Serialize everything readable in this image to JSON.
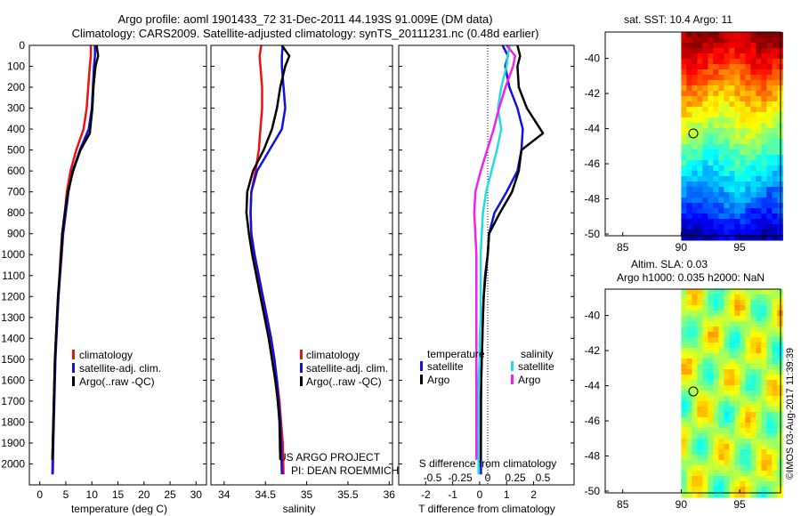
{
  "title": {
    "line1": "Argo profile: aoml 1901433_72 31-Dec-2011 44.193S 91.009E (DM data)",
    "line2": "Climatology: CARS2009. Satellite-adjusted climatology: synTS_20111231.nc (0.48d earlier)"
  },
  "depth_ticks": [
    "0",
    "100",
    "200",
    "300",
    "400",
    "500",
    "600",
    "700",
    "800",
    "900",
    "1000",
    "1100",
    "1200",
    "1300",
    "1400",
    "1500",
    "1600",
    "1700",
    "1800",
    "1900",
    "2000"
  ],
  "panels": {
    "temperature": {
      "xlabel": "temperature (deg C)",
      "xticks": [
        "0",
        "5",
        "10",
        "15",
        "20",
        "25",
        "30"
      ],
      "legend": [
        "climatology",
        "satellite-adj. clim.",
        "Argo(..raw -QC)"
      ]
    },
    "salinity": {
      "xlabel": "salinity",
      "xticks": [
        "34",
        "34.5",
        "35",
        "35.5",
        "36"
      ],
      "legend": [
        "climatology",
        "satellite-adj. clim.",
        "Argo(..raw -QC)"
      ],
      "note1": "US ARGO PROJECT",
      "note2": "PI: DEAN ROEMMICH"
    },
    "difference": {
      "xlabel": "T difference from climatology",
      "xticks": [
        "-2",
        "-1",
        "0",
        "1",
        "2"
      ],
      "s_label": "S difference from climatology",
      "s_ticks": [
        "-0.5",
        "-0.25",
        "0",
        "0.25",
        "0.5"
      ],
      "legend_temp_title": "temperature",
      "legend_sal_title": "salinity",
      "legend_temp": [
        "satellite",
        "Argo"
      ],
      "legend_sal": [
        "satellite",
        "Argo"
      ]
    }
  },
  "maps": {
    "sst_title": "sat. SST: 10.4 Argo: 11",
    "sla_title1": "Altim. SLA: 0.03",
    "sla_title2": "Argo h1000: 0.035 h2000: NaN",
    "yticks": [
      "-40",
      "-42",
      "-44",
      "-46",
      "-48",
      "-50"
    ],
    "xticks": [
      "85",
      "90",
      "95"
    ]
  },
  "stamp": "©IMOS 03-Aug-2017 11:39:39",
  "colors": {
    "climatology": "#ee1111",
    "satellite": "#1111dd",
    "argo": "#000000",
    "sat_salinity": "#22dddd",
    "argo_salinity": "#ee22ee"
  },
  "chart_data": [
    {
      "type": "line",
      "name": "temperature profile",
      "xlabel": "temperature (deg C)",
      "ylabel": "",
      "xlim": [
        -2,
        32
      ],
      "ylim": [
        2100,
        0
      ],
      "series": [
        {
          "name": "climatology",
          "color": "#ee1111",
          "x": [
            9.8,
            9.8,
            9.6,
            9.3,
            9.0,
            8.4,
            7.0,
            5.9,
            5.2,
            4.8,
            4.3,
            4.0,
            3.8,
            3.5,
            3.3,
            3.1,
            2.9,
            2.8,
            2.7,
            2.6,
            2.5,
            2.4
          ],
          "y": [
            0,
            50,
            100,
            200,
            300,
            400,
            500,
            600,
            700,
            800,
            900,
            1000,
            1100,
            1200,
            1300,
            1400,
            1500,
            1600,
            1700,
            1800,
            1900,
            2050
          ]
        },
        {
          "name": "satellite-adj. clim.",
          "color": "#1111dd",
          "x": [
            10.6,
            10.6,
            10.4,
            10.2,
            10.0,
            9.4,
            7.7,
            6.3,
            5.5,
            5.0,
            4.5,
            4.2,
            3.9,
            3.6,
            3.4,
            3.2,
            3.0,
            2.9,
            2.8,
            2.7,
            2.6,
            2.5
          ],
          "y": [
            0,
            50,
            100,
            200,
            300,
            400,
            500,
            600,
            700,
            800,
            900,
            1000,
            1100,
            1200,
            1300,
            1400,
            1500,
            1600,
            1700,
            1800,
            1900,
            2050
          ]
        },
        {
          "name": "Argo(..raw -QC)",
          "color": "#000000",
          "x": [
            10.9,
            11.2,
            10.7,
            10.3,
            10.1,
            9.6,
            7.8,
            6.4,
            5.4,
            4.8,
            4.3,
            4.1,
            3.8,
            3.5,
            3.3,
            3.1,
            2.9,
            2.8,
            2.7,
            2.6,
            2.5,
            2.4
          ],
          "y": [
            0,
            50,
            100,
            200,
            300,
            420,
            500,
            600,
            700,
            800,
            900,
            1000,
            1100,
            1200,
            1300,
            1400,
            1500,
            1600,
            1700,
            1800,
            1900,
            1980
          ]
        }
      ]
    },
    {
      "type": "line",
      "name": "salinity profile",
      "xlabel": "salinity",
      "ylabel": "",
      "xlim": [
        33.84,
        36.04
      ],
      "ylim": [
        2100,
        0
      ],
      "series": [
        {
          "name": "climatology",
          "color": "#ee1111",
          "x": [
            34.45,
            34.43,
            34.44,
            34.46,
            34.46,
            34.44,
            34.42,
            34.38,
            34.33,
            34.32,
            34.33,
            34.36,
            34.41,
            34.46,
            34.51,
            34.56,
            34.6,
            34.64,
            34.67,
            34.69,
            34.71,
            34.72
          ],
          "y": [
            0,
            50,
            100,
            200,
            300,
            400,
            500,
            600,
            700,
            800,
            900,
            1000,
            1100,
            1200,
            1300,
            1400,
            1500,
            1600,
            1700,
            1800,
            1900,
            2050
          ]
        },
        {
          "name": "satellite-adj. clim.",
          "color": "#1111dd",
          "x": [
            34.71,
            34.7,
            34.7,
            34.72,
            34.74,
            34.7,
            34.55,
            34.4,
            34.33,
            34.32,
            34.33,
            34.37,
            34.42,
            34.47,
            34.52,
            34.57,
            34.61,
            34.64,
            34.66,
            34.68,
            34.69,
            34.7
          ],
          "y": [
            0,
            50,
            100,
            200,
            300,
            400,
            500,
            600,
            700,
            800,
            900,
            1000,
            1100,
            1200,
            1300,
            1400,
            1500,
            1600,
            1700,
            1800,
            1900,
            2050
          ]
        },
        {
          "name": "Argo(..raw -QC)",
          "color": "#000000",
          "x": [
            34.7,
            34.79,
            34.74,
            34.68,
            34.64,
            34.58,
            34.48,
            34.35,
            34.28,
            34.27,
            34.3,
            34.34,
            34.39,
            34.44,
            34.49,
            34.54,
            34.58,
            34.62,
            34.65,
            34.67,
            34.68
          ],
          "y": [
            0,
            50,
            100,
            200,
            300,
            400,
            500,
            600,
            700,
            800,
            900,
            1000,
            1100,
            1200,
            1300,
            1400,
            1500,
            1600,
            1700,
            1800,
            1980
          ]
        }
      ]
    },
    {
      "type": "line",
      "name": "difference from climatology",
      "xlabel": "T difference from climatology",
      "x2label": "S difference from climatology",
      "ylabel": "",
      "xlim": [
        -3,
        3.5
      ],
      "x2lim": [
        -0.75,
        0.875
      ],
      "ylim": [
        2100,
        0
      ],
      "series": [
        {
          "name": "temperature satellite",
          "color": "#1111dd",
          "x": [
            0.85,
            1.05,
            0.95,
            1.1,
            1.4,
            1.6,
            1.55,
            1.4,
            1.0,
            0.55,
            0.35,
            0.3,
            0.2,
            0.15,
            0.12,
            0.1,
            0.08,
            0.06,
            0.05,
            0.05,
            0.05,
            0.05
          ],
          "y": [
            0,
            50,
            100,
            200,
            300,
            400,
            500,
            600,
            700,
            800,
            900,
            1000,
            1100,
            1200,
            1300,
            1400,
            1500,
            1600,
            1700,
            1800,
            1900,
            2050
          ]
        },
        {
          "name": "temperature Argo",
          "color": "#000000",
          "x": [
            1.4,
            1.5,
            1.4,
            1.45,
            1.75,
            2.35,
            1.55,
            1.45,
            1.2,
            0.75,
            0.35,
            0.3,
            0.22,
            0.15,
            0.12,
            0.1,
            0.08,
            0.06,
            0.05,
            0.05,
            0.04
          ],
          "y": [
            0,
            50,
            100,
            200,
            300,
            420,
            500,
            600,
            700,
            800,
            900,
            1000,
            1100,
            1200,
            1300,
            1400,
            1500,
            1600,
            1700,
            1800,
            1980
          ]
        },
        {
          "name": "salinity satellite",
          "color": "#22dddd",
          "x": [
            0.28,
            0.26,
            0.25,
            0.2,
            0.17,
            0.2,
            0.16,
            0.11,
            0.06,
            0.03,
            0.02,
            0.01,
            0.01,
            0.01,
            0.01,
            0.0,
            0.0,
            -0.01,
            -0.01,
            -0.01,
            -0.01,
            -0.01
          ],
          "y": [
            0,
            50,
            100,
            200,
            300,
            400,
            500,
            600,
            700,
            800,
            900,
            1000,
            1100,
            1200,
            1300,
            1400,
            1500,
            1600,
            1700,
            1800,
            1900,
            2050
          ]
        },
        {
          "name": "salinity Argo",
          "color": "#ee22ee",
          "x": [
            0.25,
            0.33,
            0.31,
            0.24,
            0.18,
            0.13,
            0.07,
            0.01,
            -0.04,
            -0.05,
            -0.04,
            -0.03,
            -0.03,
            -0.03,
            -0.03,
            -0.03,
            -0.03,
            -0.03,
            -0.03,
            -0.03,
            -0.03
          ],
          "y": [
            0,
            50,
            100,
            200,
            300,
            400,
            500,
            600,
            700,
            800,
            900,
            1000,
            1100,
            1200,
            1300,
            1400,
            1500,
            1600,
            1700,
            1800,
            1980
          ]
        }
      ]
    },
    {
      "type": "heatmap",
      "name": "SST map",
      "title": "sat. SST: 10.4 Argo: 11",
      "xlim": [
        83.5,
        98.5
      ],
      "ylim": [
        -50.1,
        -38.5
      ],
      "data_xlim": [
        90,
        98.5
      ],
      "argo_position": [
        91.009,
        -44.193
      ],
      "colormap": "jet"
    },
    {
      "type": "heatmap",
      "name": "SLA map",
      "title": "Altim. SLA: 0.03",
      "xlim": [
        83.5,
        98.5
      ],
      "ylim": [
        -50.1,
        -38.5
      ],
      "data_xlim": [
        90,
        98.5
      ],
      "argo_position": [
        91.009,
        -44.193
      ],
      "colormap": "jet"
    }
  ]
}
